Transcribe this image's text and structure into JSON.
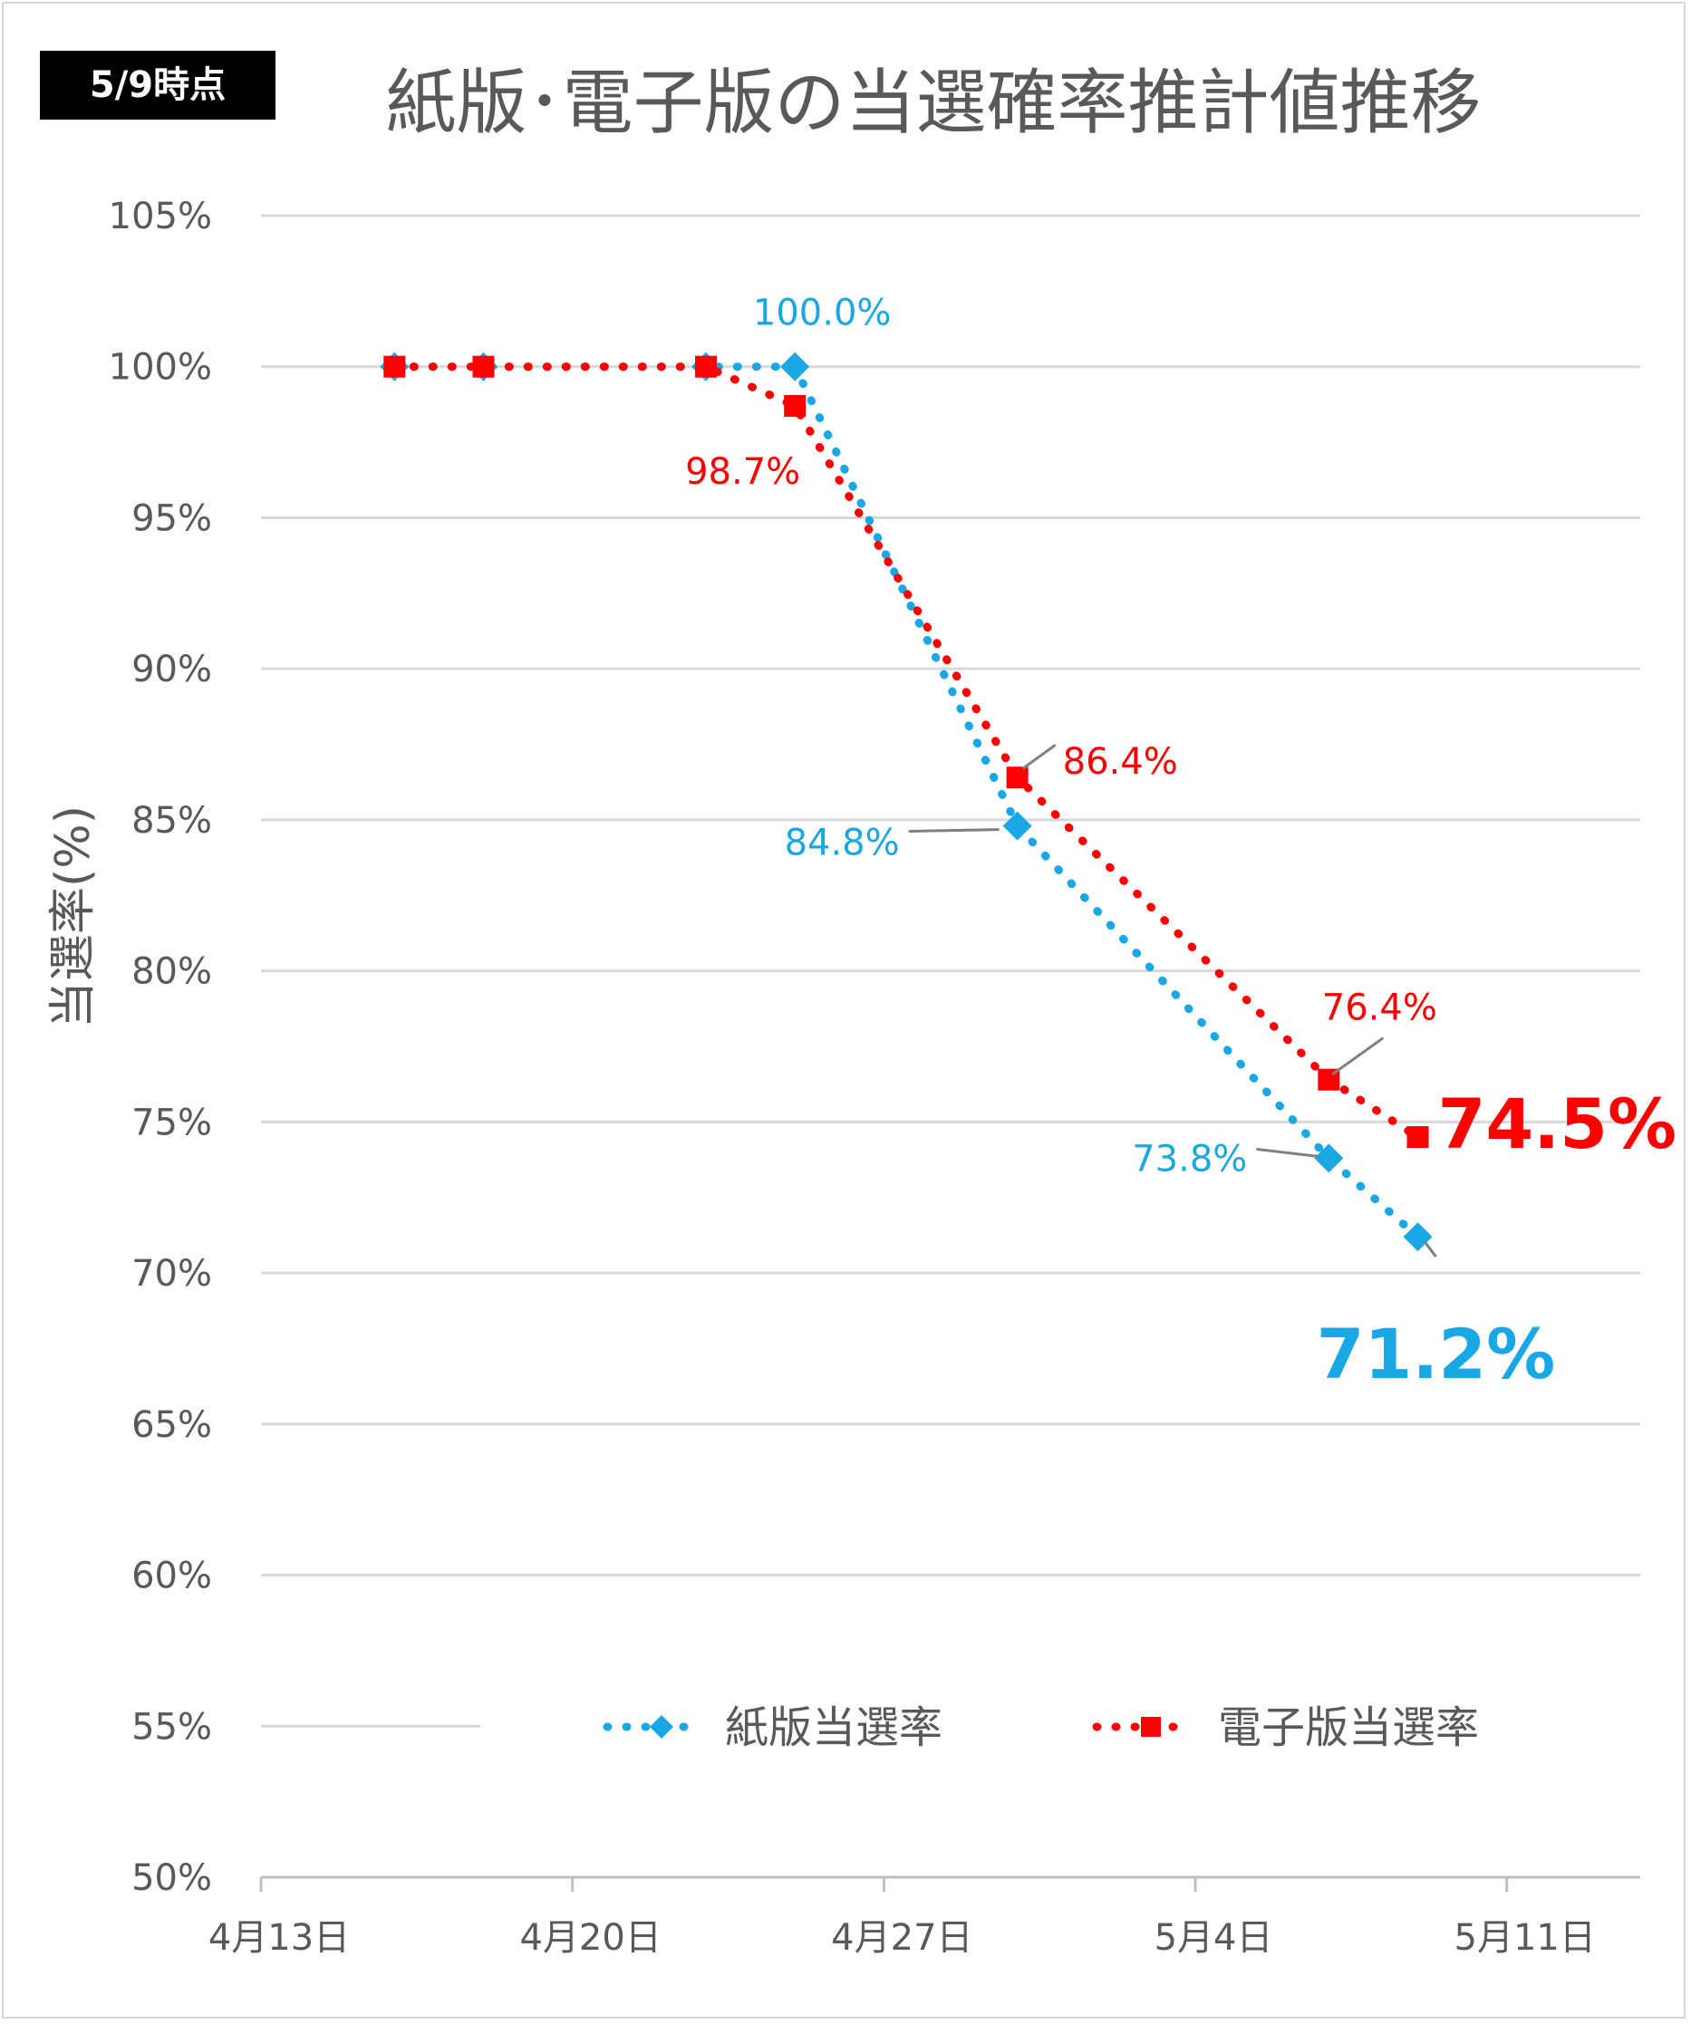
{
  "badge": "5/9時点",
  "chart_data": {
    "type": "line",
    "title": "紙版･電子版の当選確率推計値推移",
    "ylabel": "当選率(%)",
    "xlabel": "",
    "ylim": [
      50,
      105
    ],
    "yticks": [
      50,
      55,
      60,
      65,
      70,
      75,
      80,
      85,
      90,
      95,
      100,
      105
    ],
    "y_tick_format": "{v}%",
    "xlim": [
      "2024-04-13",
      "2024-05-14"
    ],
    "xticks": [
      {
        "date": "2024-04-13",
        "label": "4月13日"
      },
      {
        "date": "2024-04-20",
        "label": "4月20日"
      },
      {
        "date": "2024-04-27",
        "label": "4月27日"
      },
      {
        "date": "2024-05-04",
        "label": "5月4日"
      },
      {
        "date": "2024-05-11",
        "label": "5月11日"
      }
    ],
    "grid": true,
    "legend_position": "bottom",
    "series": [
      {
        "name": "紙版当選率",
        "color": "#1aa7e6",
        "line_style": "dotted",
        "marker": "diamond",
        "points": [
          {
            "x": "2024-04-16",
            "y": 100.0
          },
          {
            "x": "2024-04-18",
            "y": 100.0
          },
          {
            "x": "2024-04-23",
            "y": 100.0
          },
          {
            "x": "2024-04-25",
            "y": 100.0
          },
          {
            "x": "2024-04-30",
            "y": 84.8
          },
          {
            "x": "2024-05-07",
            "y": 73.8
          },
          {
            "x": "2024-05-09",
            "y": 71.2
          }
        ]
      },
      {
        "name": "電子版当選率",
        "color": "#ff0000",
        "line_style": "dotted",
        "marker": "square",
        "points": [
          {
            "x": "2024-04-16",
            "y": 100.0
          },
          {
            "x": "2024-04-18",
            "y": 100.0
          },
          {
            "x": "2024-04-23",
            "y": 100.0
          },
          {
            "x": "2024-04-25",
            "y": 98.7
          },
          {
            "x": "2024-04-30",
            "y": 86.4
          },
          {
            "x": "2024-05-07",
            "y": 76.4
          },
          {
            "x": "2024-05-09",
            "y": 74.5
          }
        ]
      }
    ],
    "annotations": [
      {
        "series": 0,
        "x": "2024-04-25",
        "text": "100.0%",
        "big": false,
        "leader": false
      },
      {
        "series": 0,
        "x": "2024-04-30",
        "text": "84.8%",
        "big": false,
        "leader": true
      },
      {
        "series": 0,
        "x": "2024-05-07",
        "text": "73.8%",
        "big": false,
        "leader": true
      },
      {
        "series": 0,
        "x": "2024-05-09",
        "text": "71.2%",
        "big": true,
        "leader": true
      },
      {
        "series": 1,
        "x": "2024-04-25",
        "text": "98.7%",
        "big": false,
        "leader": false
      },
      {
        "series": 1,
        "x": "2024-04-30",
        "text": "86.4%",
        "big": false,
        "leader": true
      },
      {
        "series": 1,
        "x": "2024-05-07",
        "text": "76.4%",
        "big": false,
        "leader": true
      },
      {
        "series": 1,
        "x": "2024-05-09",
        "text": "74.5%",
        "big": true,
        "leader": false
      }
    ]
  }
}
